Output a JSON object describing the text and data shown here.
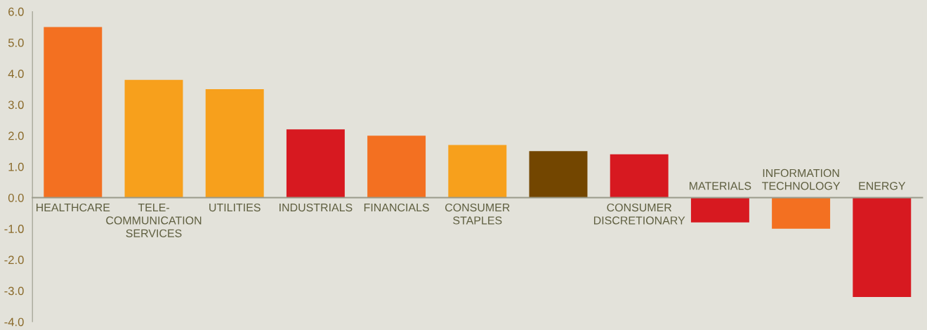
{
  "chart_data": {
    "type": "bar",
    "categories": [
      "HEALTHCARE",
      "TELE-\nCOMMUNICATION\nSERVICES",
      "UTILITIES",
      "INDUSTRIALS",
      "FINANCIALS",
      "CONSUMER\nSTAPLES",
      null,
      "CONSUMER\nDISCRETIONARY",
      "MATERIALS",
      "INFORMATION\nTECHNOLOGY",
      "ENERGY"
    ],
    "values": [
      5.5,
      3.8,
      3.5,
      2.2,
      2.0,
      1.7,
      1.5,
      1.4,
      -0.8,
      -1.0,
      -3.2
    ],
    "colors": [
      "#f37021",
      "#f7a01c",
      "#f7a01c",
      "#d71920",
      "#f37021",
      "#f7a01c",
      "#734600",
      "#d71920",
      "#d71920",
      "#f37021",
      "#d71920"
    ],
    "ylim": [
      -4,
      6
    ],
    "yticks": [
      {
        "value": -4,
        "label": "-4.0"
      },
      {
        "value": -3,
        "label": "-3.0"
      },
      {
        "value": -2,
        "label": "-2.0"
      },
      {
        "value": -1,
        "label": "-1.0"
      },
      {
        "value": 0,
        "label": "0.0"
      },
      {
        "value": 1,
        "label": "1.0"
      },
      {
        "value": 2,
        "label": "2.0"
      },
      {
        "value": 3,
        "label": "3.0"
      },
      {
        "value": 4,
        "label": "4.0"
      },
      {
        "value": 5,
        "label": "5.0"
      },
      {
        "value": 6,
        "label": "6.0"
      }
    ],
    "grid": false,
    "legend": false
  }
}
